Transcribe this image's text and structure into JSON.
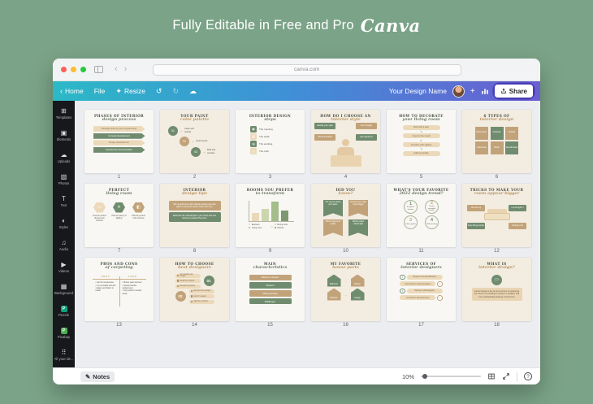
{
  "page": {
    "heading": "Fully Editable in Free and Pro",
    "brand": "Canva"
  },
  "browser": {
    "url": "canva.com"
  },
  "palette": {
    "green": "#708c6f",
    "tan": "#c2a379",
    "beige": "#ecd9ba",
    "accent_teal": "#2cb9c6",
    "accent_purple": "#6b5ed2"
  },
  "header": {
    "home": "Home",
    "file": "File",
    "resize": "Resize",
    "design_name": "Your Design Name",
    "share": "Share"
  },
  "sidebar": {
    "items": [
      {
        "label": "Templates",
        "icon": "templates-icon",
        "glyph": "⊞"
      },
      {
        "label": "Elements",
        "icon": "elements-icon",
        "glyph": "▣"
      },
      {
        "label": "Uploads",
        "icon": "uploads-icon",
        "glyph": "☁"
      },
      {
        "label": "Photos",
        "icon": "photos-icon",
        "glyph": "▧"
      },
      {
        "label": "Text",
        "icon": "text-icon",
        "glyph": "T"
      },
      {
        "label": "Styles",
        "icon": "styles-icon",
        "glyph": "◐"
      },
      {
        "label": "Audio",
        "icon": "audio-icon",
        "glyph": "♫"
      },
      {
        "label": "Videos",
        "icon": "videos-icon",
        "glyph": "▶"
      },
      {
        "label": "Background",
        "icon": "background-icon",
        "glyph": "▦"
      },
      {
        "label": "Pexels",
        "icon": "pexels-icon",
        "glyph": "P",
        "badge": "#0ba37f"
      },
      {
        "label": "Pixabay",
        "icon": "pixabay-icon",
        "glyph": "P",
        "badge": "#4caf50"
      },
      {
        "label": "All your de...",
        "icon": "apps-icon",
        "glyph": "⠿"
      }
    ]
  },
  "statusbar": {
    "notes": "Notes",
    "zoom": "10%"
  },
  "slides": [
    {
      "n": "1",
      "bg": "light",
      "title": "PHASES OF INTERIOR",
      "script": "design process",
      "type": "banners",
      "items": [
        "Strategic planning and programming",
        "Concept development",
        "Design development",
        "Construction documentation"
      ]
    },
    {
      "n": "2",
      "bg": "cream",
      "title": "YOUR PAINT",
      "script": "color palette",
      "type": "circles",
      "items": [
        {
          "num": "01",
          "label": "Clean and neutral",
          "color": "green"
        },
        {
          "num": "02",
          "label": "Avoid trends",
          "color": "tan"
        },
        {
          "num": "03",
          "label": "Bold and contrast",
          "color": "green"
        }
      ]
    },
    {
      "n": "3",
      "bg": "light",
      "title": "INTERIOR DESIGN",
      "script": "steps",
      "type": "iconlist",
      "items": [
        {
          "label": "The meeting",
          "color": "green",
          "glyph": "◉"
        },
        {
          "label": "The audit",
          "color": "beige",
          "glyph": "▤"
        },
        {
          "label": "The working",
          "color": "green",
          "glyph": "⚒"
        },
        {
          "label": "The rush",
          "color": "beige",
          "glyph": "◷"
        }
      ]
    },
    {
      "n": "4",
      "bg": "cream",
      "title": "HOW DO I CHOOSE AN",
      "script": "interior style",
      "type": "person",
      "items": [
        {
          "label": "Identify your style",
          "color": "green"
        },
        {
          "label": "Set a budget",
          "color": "tan"
        },
        {
          "label": "Check portfolios",
          "color": "tan"
        },
        {
          "label": "Ask questions",
          "color": "green"
        }
      ]
    },
    {
      "n": "5",
      "bg": "light",
      "title": "HOW TO DECORATE",
      "script": "your living room",
      "type": "steps",
      "items": [
        "Start with a plan",
        "Invest in the couch",
        "Furniture with lighting",
        "Add personality"
      ]
    },
    {
      "n": "6",
      "bg": "cream",
      "title": "6 TYPES OF",
      "script": "interior design",
      "type": "squares",
      "items": [
        {
          "label": "Mid-Century",
          "color": "tan"
        },
        {
          "label": "Industrial",
          "color": "green"
        },
        {
          "label": "Coastal",
          "color": "tan"
        },
        {
          "label": "Farmhouse",
          "color": "tan"
        },
        {
          "label": "Rustic",
          "color": "tan"
        },
        {
          "label": "Scandinavian",
          "color": "green"
        }
      ]
    },
    {
      "n": "7",
      "bg": "light",
      "title": "PERFECT",
      "script": "living room",
      "type": "hex",
      "items": [
        {
          "label": "Find the perfect dining room furniture",
          "color": "beige",
          "glyph": "▭"
        },
        {
          "label": "Plan for plenty of lighting",
          "color": "green",
          "glyph": "☀"
        },
        {
          "label": "Pick the perfect color scheme",
          "color": "tan",
          "glyph": "◧"
        }
      ]
    },
    {
      "n": "8",
      "bg": "cream",
      "title": "INTERIOR",
      "script": "design tips",
      "type": "textboxes",
      "items": [
        {
          "text": "Mix neutral tones with natural textures and add plants to keep the space warm and cozy.",
          "color": "tan"
        },
        {
          "text": "Maximize the natural light in your home and use mirrors to expand the room.",
          "color": "green"
        }
      ]
    },
    {
      "n": "9",
      "bg": "light",
      "title": "ROOMS YOU PREFER",
      "script": "to transform",
      "type": "chart",
      "bars": [
        {
          "h": 10,
          "color": "#ead8b8"
        },
        {
          "h": 15,
          "color": "#ccd6ae"
        },
        {
          "h": 24,
          "color": "#a3bd8b"
        },
        {
          "h": 13,
          "color": "#7e996f"
        }
      ],
      "legend": [
        {
          "label": "Bedroom",
          "color": "#ead8b8"
        },
        {
          "label": "Dining room",
          "color": "#ccd6ae"
        },
        {
          "label": "Living room",
          "color": "#a3bd8b"
        },
        {
          "label": "Kitchen",
          "color": "#7e996f"
        }
      ]
    },
    {
      "n": "10",
      "bg": "cream",
      "title": "DID YOU",
      "script": "know?",
      "type": "ribbons",
      "items": [
        {
          "text": "The rug can define your space",
          "color": "green"
        },
        {
          "text": "Neutral tones make rooms bigger",
          "color": "tan"
        },
        {
          "text": "Plants improve air quality",
          "color": "tan"
        },
        {
          "text": "Mirrors reflect natural light",
          "color": "green"
        }
      ]
    },
    {
      "n": "11",
      "bg": "light",
      "title": "WHAT'S YOUR FAVORITE",
      "script": "2022 design trend?",
      "type": "numcircles",
      "items": [
        {
          "num": "1",
          "label": "Sculptural furniture",
          "color": "green"
        },
        {
          "num": "2",
          "label": "Earthy grounded shades",
          "color": "tan"
        },
        {
          "num": "3",
          "label": "Indoor garden",
          "color": "tan"
        },
        {
          "num": "4",
          "label": "Wall paneling",
          "color": "green"
        }
      ]
    },
    {
      "n": "12",
      "bg": "cream",
      "title": "TRICKS TO MAKE YOUR",
      "script": "room appear bigger",
      "type": "couch",
      "items": [
        {
          "label": "Use the rug",
          "color": "tan"
        },
        {
          "label": "Let the light in",
          "color": "green"
        },
        {
          "label": "Keep things simple",
          "color": "green"
        },
        {
          "label": "Arrange to fit",
          "color": "tan"
        }
      ]
    },
    {
      "n": "13",
      "bg": "light",
      "title": "PROS AND CONS",
      "script": "of carpeting",
      "type": "proscons",
      "headers": [
        "PROS",
        "CONS"
      ],
      "pros": [
        "• Can be inexpensive",
        "• It so versatile and soft",
        "• Easier and faster to install"
      ],
      "cons": [
        "• Shows wear and tear",
        "• Needs periodic replacement",
        "• Only works in certain areas"
      ]
    },
    {
      "n": "14",
      "bg": "cream",
      "title": "HOW TO CHOOSE",
      "script": "best designers",
      "type": "choose",
      "group1": {
        "num": "01",
        "color": "green",
        "pills": [
          "Set funding and budget",
          "Read the reviews",
          "Research properly"
        ]
      },
      "group2": {
        "num": "02",
        "color": "tan",
        "pills": [
          "Review their designs",
          "Ask for a quote",
          "Sign the contract"
        ]
      }
    },
    {
      "n": "15",
      "bg": "light",
      "title": "MAIN",
      "script": "characteristics",
      "type": "speechbars",
      "items": [
        {
          "label": "Wood or veneer",
          "color": "tan"
        },
        {
          "label": "Modern",
          "color": "green"
        },
        {
          "label": "Wall paneling",
          "color": "tan"
        },
        {
          "label": "Wallpaper",
          "color": "green"
        }
      ]
    },
    {
      "n": "16",
      "bg": "cream",
      "title": "MY FAVORITE",
      "script": "house parts",
      "type": "houses",
      "rows": [
        [
          {
            "label": "Bathroom",
            "color": "green"
          },
          {
            "label": "Kitchen",
            "color": "tan"
          }
        ],
        [
          {
            "label": "Bedroom",
            "color": "tan"
          },
          {
            "label": "Garage",
            "color": "green"
          }
        ]
      ]
    },
    {
      "n": "17",
      "bg": "light",
      "title": "SERVICES OF",
      "script": "interior designers",
      "type": "badgepills",
      "items": [
        "Design conceptualization",
        "Construction documentation",
        "Styling & photography",
        "Contractor administration"
      ]
    },
    {
      "n": "18",
      "bg": "cream",
      "title": "WHAT IS",
      "script": "interior design?",
      "type": "definition",
      "glyph": "▭",
      "text": "Interior design is the art and science of enhancing the interior of a building to achieve a healthier and more aesthetically pleasing environment."
    }
  ]
}
